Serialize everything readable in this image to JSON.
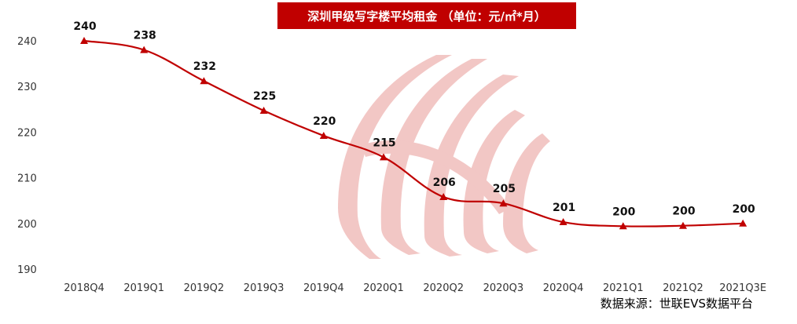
{
  "chart_data": {
    "type": "line",
    "title": "深圳甲级写字楼平均租金 （单位：元/㎡*月）",
    "categories": [
      "2018Q4",
      "2019Q1",
      "2019Q2",
      "2019Q3",
      "2019Q4",
      "2020Q1",
      "2020Q2",
      "2020Q3",
      "2020Q4",
      "2021Q1",
      "2021Q2",
      "2021Q3E"
    ],
    "series": [
      {
        "values": [
          240,
          238,
          232,
          225,
          220,
          215,
          206,
          205,
          201,
          200,
          200,
          200
        ]
      }
    ],
    "plotted_values": [
      240,
      238,
      231.2,
      224.7,
      219.2,
      214.5,
      205.8,
      204.4,
      200.3,
      199.4,
      199.5,
      200
    ],
    "ylim": [
      190,
      240
    ],
    "yticks": [
      "190",
      "200",
      "210",
      "220",
      "230",
      "240"
    ],
    "xlabel": "",
    "ylabel": "",
    "grid": false,
    "legend": "none",
    "line_color": "#c00000",
    "source": "数据来源：世联EVS数据平台"
  }
}
